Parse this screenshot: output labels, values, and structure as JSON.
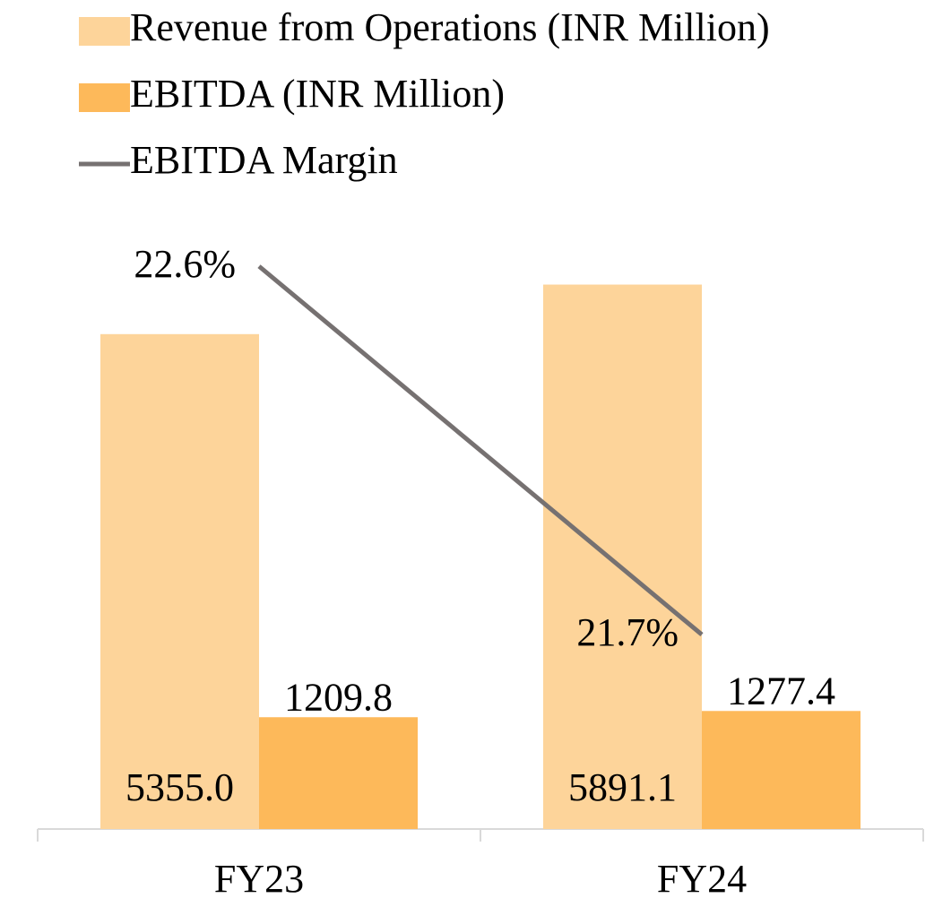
{
  "chart_data": {
    "type": "bar_line",
    "categories": [
      "FY23",
      "FY24"
    ],
    "series": [
      {
        "name": "Revenue from Operations (INR Million)",
        "type": "bar",
        "color": "#fdd49a",
        "values": [
          5355.0,
          5891.1
        ],
        "value_labels": [
          "5355.0",
          "5891.1"
        ]
      },
      {
        "name": "EBITDA (INR Million)",
        "type": "bar",
        "color": "#fdb95a",
        "values": [
          1209.8,
          1277.4
        ],
        "value_labels": [
          "1209.8",
          "1277.4"
        ]
      },
      {
        "name": "EBITDA Margin",
        "type": "line",
        "axis": "y2",
        "color": "#767171",
        "values": [
          22.6,
          21.7
        ],
        "value_labels": [
          "22.6%",
          "21.7%"
        ]
      }
    ],
    "ylim": [
      0,
      6740
    ],
    "y2lim": [
      21.225,
      22.747
    ],
    "legend": "top-left"
  }
}
